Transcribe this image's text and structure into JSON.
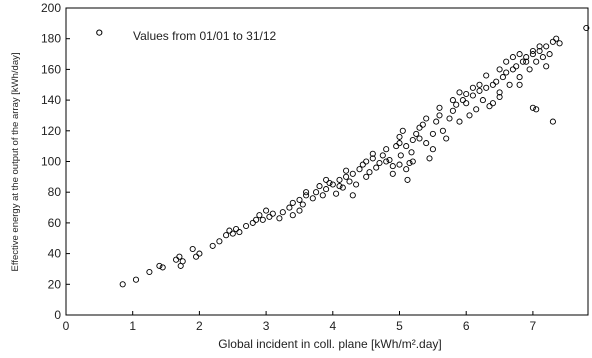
{
  "chart_data": {
    "type": "scatter",
    "title": "",
    "xlabel": "Global incident in coll. plane [kWh/m².day]",
    "ylabel": "Effective energy at the output of the array [kWh/day]",
    "xlim": [
      0,
      7.8
    ],
    "ylim": [
      0,
      200
    ],
    "x_ticks": [
      "0",
      "1",
      "2",
      "3",
      "4",
      "5",
      "6",
      "7"
    ],
    "y_ticks": [
      "0",
      "20",
      "40",
      "60",
      "80",
      "100",
      "120",
      "140",
      "160",
      "180",
      "200"
    ],
    "grid": false,
    "annotation": "Values from 01/01 to 31/12",
    "legend_marker": {
      "x": 0.5,
      "y": 184
    },
    "series": [
      {
        "marker": "open-circle",
        "points": [
          [
            0.85,
            20
          ],
          [
            1.05,
            23
          ],
          [
            1.25,
            28
          ],
          [
            1.4,
            32
          ],
          [
            1.45,
            31
          ],
          [
            1.65,
            36
          ],
          [
            1.7,
            38
          ],
          [
            1.72,
            32
          ],
          [
            1.75,
            35
          ],
          [
            1.9,
            43
          ],
          [
            2.0,
            40
          ],
          [
            1.95,
            38
          ],
          [
            2.2,
            45
          ],
          [
            2.3,
            48
          ],
          [
            2.4,
            52
          ],
          [
            2.45,
            55
          ],
          [
            2.5,
            53
          ],
          [
            2.55,
            56
          ],
          [
            2.6,
            54
          ],
          [
            2.7,
            58
          ],
          [
            2.8,
            60
          ],
          [
            2.85,
            62
          ],
          [
            2.9,
            65
          ],
          [
            2.95,
            62
          ],
          [
            3.0,
            68
          ],
          [
            3.05,
            64
          ],
          [
            3.1,
            66
          ],
          [
            3.2,
            63
          ],
          [
            3.25,
            67
          ],
          [
            3.35,
            70
          ],
          [
            3.4,
            73
          ],
          [
            3.5,
            75
          ],
          [
            3.55,
            72
          ],
          [
            3.6,
            78
          ],
          [
            3.7,
            76
          ],
          [
            3.75,
            80
          ],
          [
            3.8,
            84
          ],
          [
            3.85,
            78
          ],
          [
            3.9,
            82
          ],
          [
            3.95,
            86
          ],
          [
            4.0,
            85
          ],
          [
            4.05,
            79
          ],
          [
            4.1,
            88
          ],
          [
            4.15,
            83
          ],
          [
            4.2,
            90
          ],
          [
            4.25,
            87
          ],
          [
            4.3,
            92
          ],
          [
            4.35,
            85
          ],
          [
            4.4,
            95
          ],
          [
            4.45,
            98
          ],
          [
            4.5,
            100
          ],
          [
            4.55,
            93
          ],
          [
            4.6,
            102
          ],
          [
            4.65,
            96
          ],
          [
            4.7,
            99
          ],
          [
            4.75,
            104
          ],
          [
            4.8,
            108
          ],
          [
            4.85,
            101
          ],
          [
            4.9,
            97
          ],
          [
            4.95,
            110
          ],
          [
            5.0,
            112
          ],
          [
            5.02,
            104
          ],
          [
            5.05,
            120
          ],
          [
            5.1,
            95
          ],
          [
            5.12,
            88
          ],
          [
            5.15,
            99
          ],
          [
            5.18,
            106
          ],
          [
            5.2,
            114
          ],
          [
            5.25,
            118
          ],
          [
            5.3,
            122
          ],
          [
            5.35,
            124
          ],
          [
            5.4,
            112
          ],
          [
            5.45,
            102
          ],
          [
            5.5,
            108
          ],
          [
            5.55,
            126
          ],
          [
            5.6,
            130
          ],
          [
            5.65,
            120
          ],
          [
            5.7,
            115
          ],
          [
            5.75,
            128
          ],
          [
            5.8,
            133
          ],
          [
            5.85,
            137
          ],
          [
            5.9,
            126
          ],
          [
            5.95,
            140
          ],
          [
            6.0,
            138
          ],
          [
            6.05,
            130
          ],
          [
            6.1,
            143
          ],
          [
            6.15,
            134
          ],
          [
            6.2,
            146
          ],
          [
            6.25,
            140
          ],
          [
            6.3,
            148
          ],
          [
            6.35,
            136
          ],
          [
            6.4,
            150
          ],
          [
            6.45,
            152
          ],
          [
            6.5,
            145
          ],
          [
            6.55,
            155
          ],
          [
            6.6,
            158
          ],
          [
            6.65,
            150
          ],
          [
            6.7,
            160
          ],
          [
            6.75,
            162
          ],
          [
            6.8,
            155
          ],
          [
            6.85,
            165
          ],
          [
            6.9,
            168
          ],
          [
            6.95,
            160
          ],
          [
            7.0,
            170
          ],
          [
            7.05,
            165
          ],
          [
            7.1,
            172
          ],
          [
            7.15,
            168
          ],
          [
            7.2,
            175
          ],
          [
            7.25,
            170
          ],
          [
            7.3,
            178
          ],
          [
            7.35,
            180
          ],
          [
            7.4,
            177
          ],
          [
            4.1,
            84
          ],
          [
            4.5,
            90
          ],
          [
            4.8,
            100
          ],
          [
            5.0,
            98
          ],
          [
            5.1,
            110
          ],
          [
            5.2,
            100
          ],
          [
            5.3,
            115
          ],
          [
            5.6,
            135
          ],
          [
            5.9,
            145
          ],
          [
            6.1,
            148
          ],
          [
            6.3,
            156
          ],
          [
            6.5,
            160
          ],
          [
            6.6,
            165
          ],
          [
            6.7,
            168
          ],
          [
            6.8,
            170
          ],
          [
            6.9,
            165
          ],
          [
            7.0,
            172
          ],
          [
            7.1,
            175
          ],
          [
            6.2,
            150
          ],
          [
            6.0,
            144
          ],
          [
            5.8,
            140
          ],
          [
            5.4,
            128
          ],
          [
            5.0,
            116
          ],
          [
            4.6,
            105
          ],
          [
            4.2,
            94
          ],
          [
            3.9,
            88
          ],
          [
            3.6,
            80
          ],
          [
            7.0,
            135
          ],
          [
            7.05,
            134
          ],
          [
            7.3,
            126
          ],
          [
            7.8,
            187
          ],
          [
            6.4,
            138
          ],
          [
            6.5,
            142
          ],
          [
            6.8,
            150
          ],
          [
            7.2,
            162
          ],
          [
            4.3,
            78
          ],
          [
            4.9,
            92
          ],
          [
            5.5,
            118
          ],
          [
            3.4,
            65
          ],
          [
            3.5,
            68
          ]
        ]
      }
    ]
  }
}
